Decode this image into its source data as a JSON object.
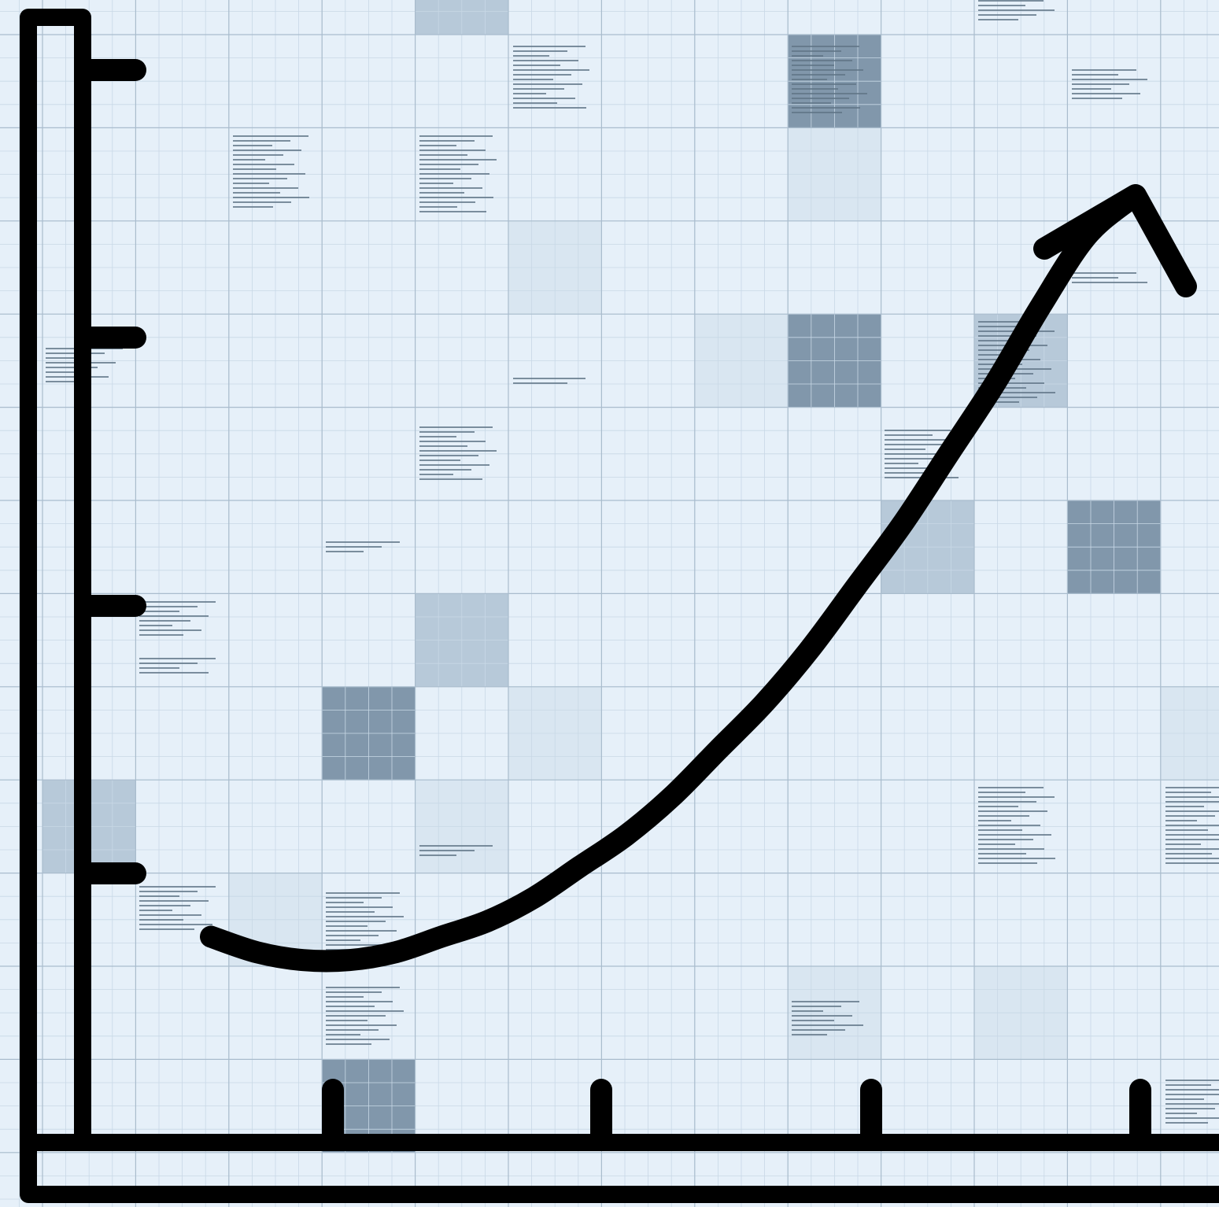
{
  "chart_data": {
    "type": "line",
    "title": "",
    "xlabel": "",
    "ylabel": "",
    "x_ticks": 4,
    "y_ticks": 4,
    "tick_labels": [],
    "grid": true,
    "series": [
      {
        "x": [
          0.0,
          0.05,
          0.1,
          0.15,
          0.2,
          0.25,
          0.3,
          0.35,
          0.4,
          0.45,
          0.5,
          0.55,
          0.6,
          0.65,
          0.7,
          0.75,
          0.8,
          0.85,
          0.9,
          0.95,
          1.0
        ],
        "values": [
          0.05,
          0.03,
          0.02,
          0.02,
          0.03,
          0.05,
          0.07,
          0.1,
          0.14,
          0.18,
          0.23,
          0.29,
          0.35,
          0.42,
          0.5,
          0.58,
          0.67,
          0.76,
          0.86,
          0.95,
          1.0
        ]
      }
    ],
    "xlim": [
      0,
      1
    ],
    "ylim": [
      0,
      1
    ],
    "arrowhead": true,
    "colors": {
      "background": "#e6f0f9",
      "grid_minor": "#c8d8e6",
      "grid_major": "#a9bccd",
      "shade_light": "#d3e1ee",
      "shade_mid": "#aec2d4",
      "shade_dark": "#6e879e",
      "text_lines": "#5f7486",
      "axis": "#000000"
    }
  }
}
